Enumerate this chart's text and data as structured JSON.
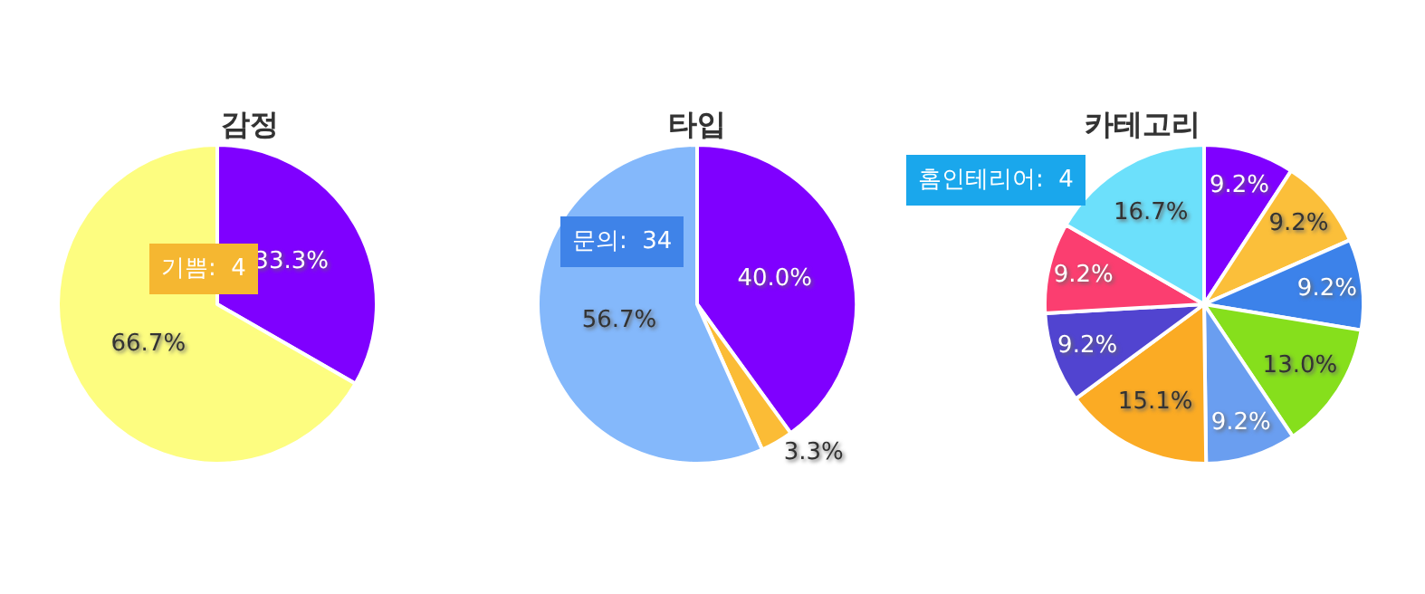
{
  "chart_data": [
    {
      "type": "pie",
      "title": "감정",
      "categories": [
        null,
        null
      ],
      "values": [
        33.3,
        66.7
      ],
      "colors": [
        "#7f00ff",
        "#fdfd80"
      ],
      "value_labels": [
        "33.3%",
        "66.7%"
      ],
      "annotations": [
        "기쁨:  4"
      ],
      "legend": false
    },
    {
      "type": "pie",
      "title": "타입",
      "categories": [
        null,
        null,
        null
      ],
      "values": [
        40.0,
        3.3,
        56.7
      ],
      "colors": [
        "#7f00ff",
        "#fbbc36",
        "#84b8fb"
      ],
      "value_labels": [
        "40.0%",
        "3.3%",
        "56.7%"
      ],
      "annotations": [
        "문의:  34"
      ],
      "legend": false
    },
    {
      "type": "pie",
      "title": "카테고리",
      "categories": [
        null,
        null,
        null,
        null,
        null,
        null,
        null,
        null,
        null
      ],
      "values": [
        9.2,
        9.2,
        9.2,
        13.0,
        9.2,
        15.1,
        9.2,
        9.2,
        16.7
      ],
      "colors": [
        "#7f00ff",
        "#fbbf3a",
        "#3c82ea",
        "#86df1c",
        "#6a9ef0",
        "#fbab24",
        "#5144d0",
        "#fb3e70",
        "#6ce0fb"
      ],
      "value_labels": [
        "9.2%",
        "9.2%",
        "9.2%",
        "13.0%",
        "9.2%",
        "15.1%",
        "9.2%",
        "9.2%",
        "16.7%"
      ],
      "annotations": [
        "홈인테리어:  4"
      ],
      "legend": false
    }
  ]
}
